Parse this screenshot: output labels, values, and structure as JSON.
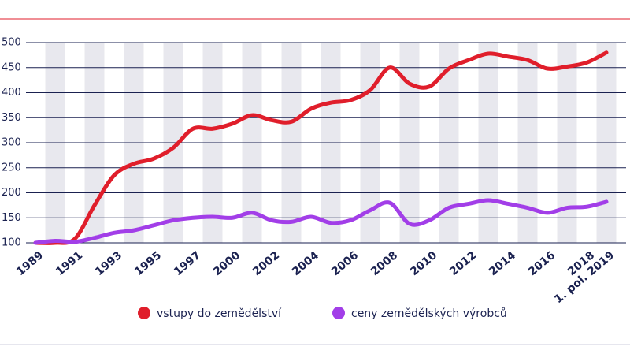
{
  "chart_data": {
    "type": "line",
    "categories": [
      "1989",
      null,
      "1991",
      null,
      "1993",
      null,
      "1995",
      null,
      "1997",
      null,
      "2000",
      null,
      "2002",
      null,
      "2004",
      null,
      "2006",
      null,
      "2008",
      null,
      "2010",
      null,
      "2012",
      null,
      "2014",
      null,
      "2016",
      null,
      "2018",
      "1. pol. 2019"
    ],
    "series": [
      {
        "name": "vstupy do zemědělství",
        "color": "#e01e2b",
        "values": [
          100,
          100,
          108,
          175,
          235,
          258,
          268,
          290,
          328,
          328,
          338,
          355,
          345,
          342,
          368,
          380,
          385,
          405,
          450,
          418,
          412,
          448,
          465,
          478,
          472,
          465,
          448,
          452,
          460,
          480
        ]
      },
      {
        "name": "ceny zemědělských výrobců",
        "color": "#a23ee8",
        "values": [
          100,
          104,
          102,
          110,
          120,
          125,
          135,
          145,
          150,
          152,
          150,
          160,
          145,
          142,
          152,
          140,
          145,
          165,
          180,
          138,
          145,
          170,
          178,
          185,
          178,
          170,
          160,
          170,
          172,
          182
        ]
      }
    ],
    "ylim": [
      100,
      500
    ],
    "yticks": [
      100,
      150,
      200,
      250,
      300,
      350,
      400,
      450,
      500
    ],
    "grid": true
  }
}
